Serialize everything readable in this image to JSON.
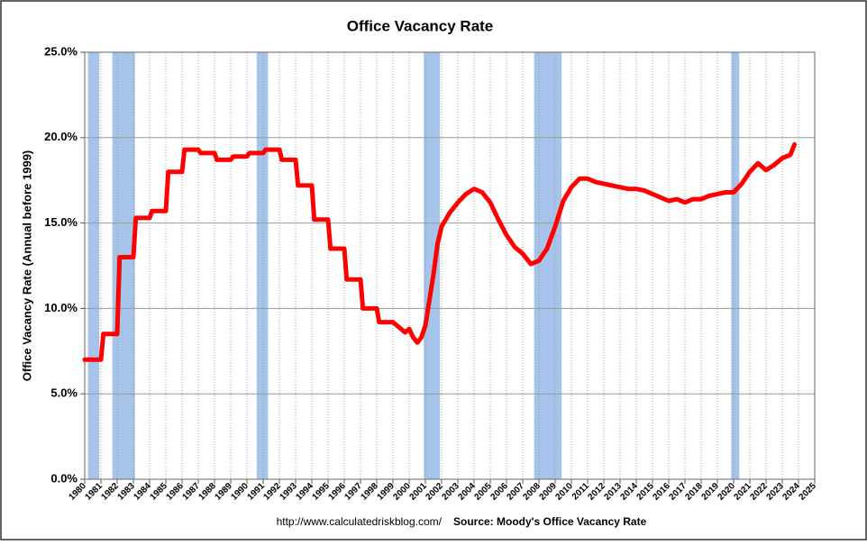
{
  "chart_data": {
    "type": "line",
    "title": "Office Vacancy Rate",
    "y_label": "Office Vacancy Rate (Annual before 1999)",
    "footer_url": "http://www.calculatedriskblog.com/",
    "footer_source": "Source: Moody's Office Vacancy Rate",
    "xlim": [
      1980,
      2025
    ],
    "xticks": [
      1980,
      1981,
      1982,
      1983,
      1984,
      1985,
      1986,
      1987,
      1988,
      1989,
      1990,
      1991,
      1992,
      1993,
      1994,
      1995,
      1996,
      1997,
      1998,
      1999,
      2000,
      2001,
      2002,
      2003,
      2004,
      2005,
      2006,
      2007,
      2008,
      2009,
      2010,
      2011,
      2012,
      2013,
      2014,
      2015,
      2016,
      2017,
      2018,
      2019,
      2020,
      2021,
      2022,
      2023,
      2024,
      2025
    ],
    "ylim": [
      0,
      25
    ],
    "yticks": [
      {
        "value": 0,
        "label": "0.0%"
      },
      {
        "value": 5,
        "label": "5.0%"
      },
      {
        "value": 10,
        "label": "10.0%"
      },
      {
        "value": 15,
        "label": "15.0%"
      },
      {
        "value": 20,
        "label": "20.0%"
      },
      {
        "value": 25,
        "label": "25.0%"
      }
    ],
    "grid": true,
    "recession_color": "#a6c4ea",
    "recessions": [
      [
        1980.2,
        1980.9
      ],
      [
        1981.7,
        1983.1
      ],
      [
        1990.6,
        1991.3
      ],
      [
        2000.9,
        2001.9
      ],
      [
        2007.7,
        2009.4
      ],
      [
        2019.85,
        2020.35
      ]
    ],
    "series": [
      {
        "color": "#ff0000",
        "x": [
          1980,
          1981,
          1981.15,
          1982,
          1982.15,
          1983,
          1983.15,
          1984,
          1984.15,
          1985,
          1985.15,
          1986,
          1986.15,
          1987,
          1987.15,
          1988,
          1988.15,
          1989,
          1989.15,
          1990,
          1990.15,
          1991,
          1991.15,
          1992,
          1992.15,
          1993,
          1993.15,
          1994,
          1994.15,
          1995,
          1995.15,
          1996,
          1996.15,
          1997,
          1997.15,
          1998,
          1998.15,
          1999,
          1999.25,
          1999.5,
          1999.75,
          2000,
          2000.25,
          2000.5,
          2000.75,
          2001,
          2001.25,
          2001.5,
          2001.75,
          2002,
          2002.5,
          2003,
          2003.5,
          2004,
          2004.5,
          2005,
          2005.5,
          2006,
          2006.5,
          2007,
          2007.5,
          2008,
          2008.5,
          2009,
          2009.5,
          2010,
          2010.5,
          2011,
          2011.5,
          2012,
          2012.5,
          2013,
          2013.5,
          2014,
          2014.5,
          2015,
          2015.5,
          2016,
          2016.5,
          2017,
          2017.5,
          2018,
          2018.5,
          2019,
          2019.5,
          2020,
          2020.5,
          2021,
          2021.5,
          2022,
          2022.5,
          2023,
          2023.5,
          2023.75
        ],
        "values": [
          7.0,
          7.0,
          8.5,
          8.5,
          13.0,
          13.0,
          15.3,
          15.3,
          15.7,
          15.7,
          18.0,
          18.0,
          19.3,
          19.3,
          19.1,
          19.1,
          18.7,
          18.7,
          18.9,
          18.9,
          19.1,
          19.1,
          19.3,
          19.3,
          18.7,
          18.7,
          17.2,
          17.2,
          15.2,
          15.2,
          13.5,
          13.5,
          11.7,
          11.7,
          10.0,
          10.0,
          9.2,
          9.2,
          9.0,
          8.8,
          8.6,
          8.8,
          8.3,
          8.0,
          8.3,
          9.0,
          10.5,
          12.0,
          13.8,
          14.8,
          15.6,
          16.2,
          16.7,
          17.0,
          16.8,
          16.2,
          15.2,
          14.3,
          13.6,
          13.2,
          12.6,
          12.8,
          13.5,
          14.8,
          16.3,
          17.1,
          17.6,
          17.6,
          17.4,
          17.3,
          17.2,
          17.1,
          17.0,
          17.0,
          16.9,
          16.7,
          16.5,
          16.3,
          16.4,
          16.2,
          16.4,
          16.4,
          16.6,
          16.7,
          16.8,
          16.8,
          17.3,
          18.0,
          18.5,
          18.1,
          18.4,
          18.8,
          19.0,
          19.6
        ]
      }
    ]
  }
}
